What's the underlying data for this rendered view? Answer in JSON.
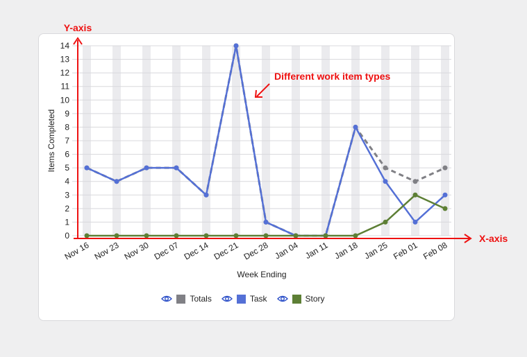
{
  "chart_data": {
    "type": "line",
    "xlabel": "Week Ending",
    "ylabel": "Items Completed",
    "ylim": [
      0,
      14
    ],
    "yticks": [
      0,
      1,
      2,
      3,
      4,
      5,
      6,
      7,
      8,
      9,
      10,
      11,
      12,
      13,
      14
    ],
    "categories": [
      "Nov 16",
      "Nov 23",
      "Nov 30",
      "Dec 07",
      "Dec 14",
      "Dec 21",
      "Dec 28",
      "Jan 04",
      "Jan 11",
      "Jan 18",
      "Jan 25",
      "Feb 01",
      "Feb 08"
    ],
    "series": [
      {
        "name": "Totals",
        "values": [
          5,
          4,
          5,
          5,
          3,
          14,
          1,
          0,
          0,
          8,
          5,
          4,
          5
        ],
        "color": "#808085",
        "dashed": true
      },
      {
        "name": "Task",
        "values": [
          5,
          4,
          5,
          5,
          3,
          14,
          1,
          0,
          0,
          8,
          4,
          1,
          3
        ],
        "color": "#5470d6",
        "dashed": false
      },
      {
        "name": "Story",
        "values": [
          0,
          0,
          0,
          0,
          0,
          0,
          0,
          0,
          0,
          0,
          1,
          3,
          2
        ],
        "color": "#5d7f35",
        "dashed": false
      }
    ],
    "grid": true,
    "legend_position": "bottom"
  },
  "annotations": {
    "y_axis_label": "Y-axis",
    "x_axis_label": "X-axis",
    "callout": "Different work item types",
    "color": "#ee1111"
  }
}
